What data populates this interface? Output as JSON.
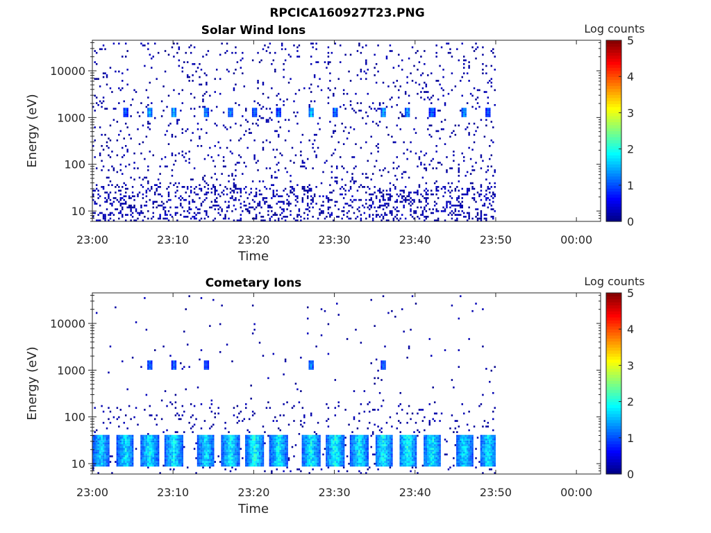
{
  "figure_title": "RPCICA160927T23.PNG",
  "colormap": "jet",
  "chart_data": [
    {
      "type": "heatmap",
      "title": "Solar Wind Ions",
      "xlabel": "Time",
      "ylabel": "Energy (eV)",
      "yscale": "log",
      "xlim": [
        "23:00",
        "00:03"
      ],
      "ylim": [
        6,
        45000
      ],
      "x_ticks": [
        "23:00",
        "23:10",
        "23:20",
        "23:30",
        "23:40",
        "23:50",
        "00:00"
      ],
      "y_ticks": [
        "10",
        "100",
        "1000",
        "10000"
      ],
      "data_span": [
        "23:00",
        "23:50"
      ],
      "colorbar": {
        "label": "Log counts",
        "range": [
          0,
          5
        ],
        "ticks": [
          "0",
          "1",
          "2",
          "3",
          "4",
          "5"
        ]
      },
      "pattern": "sparse single counts across all energies; recurring ~1.2 keV peaks every ~3 min",
      "peaks": [
        {
          "time": "23:04",
          "energy_eV": 1200,
          "log_counts": 1.2
        },
        {
          "time": "23:07",
          "energy_eV": 1200,
          "log_counts": 1.7
        },
        {
          "time": "23:10",
          "energy_eV": 1200,
          "log_counts": 1.6
        },
        {
          "time": "23:14",
          "energy_eV": 1200,
          "log_counts": 1.5
        },
        {
          "time": "23:17",
          "energy_eV": 1200,
          "log_counts": 1.4
        },
        {
          "time": "23:20",
          "energy_eV": 1200,
          "log_counts": 1.3
        },
        {
          "time": "23:23",
          "energy_eV": 1200,
          "log_counts": 1.2
        },
        {
          "time": "23:27",
          "energy_eV": 1200,
          "log_counts": 1.9
        },
        {
          "time": "23:30",
          "energy_eV": 1200,
          "log_counts": 1.4
        },
        {
          "time": "23:36",
          "energy_eV": 1200,
          "log_counts": 1.7
        },
        {
          "time": "23:39",
          "energy_eV": 1200,
          "log_counts": 1.6
        },
        {
          "time": "23:42",
          "energy_eV": 1200,
          "log_counts": 1.3
        },
        {
          "time": "23:46",
          "energy_eV": 1200,
          "log_counts": 1.6
        },
        {
          "time": "23:49",
          "energy_eV": 1200,
          "log_counts": 1.2
        }
      ]
    },
    {
      "type": "heatmap",
      "title": "Cometary Ions",
      "xlabel": "Time",
      "ylabel": "Energy (eV)",
      "yscale": "log",
      "xlim": [
        "23:00",
        "00:03"
      ],
      "ylim": [
        6,
        45000
      ],
      "x_ticks": [
        "23:00",
        "23:10",
        "23:20",
        "23:30",
        "23:40",
        "23:50",
        "00:00"
      ],
      "y_ticks": [
        "10",
        "100",
        "1000",
        "10000"
      ],
      "data_span": [
        "23:00",
        "23:50"
      ],
      "colorbar": {
        "label": "Log counts",
        "range": [
          0,
          5
        ],
        "ticks": [
          "0",
          "1",
          "2",
          "3",
          "4",
          "5"
        ]
      },
      "pattern": "strong low-energy (10-30 eV) bursts every ~3.2 min; sparse counts at higher energies",
      "peaks": [
        {
          "time": "23:01",
          "energy_eV": 18,
          "log_counts": 1.8
        },
        {
          "time": "23:04",
          "energy_eV": 18,
          "log_counts": 1.9
        },
        {
          "time": "23:07",
          "energy_eV": 18,
          "log_counts": 2.0
        },
        {
          "time": "23:10",
          "energy_eV": 18,
          "log_counts": 2.0
        },
        {
          "time": "23:14",
          "energy_eV": 18,
          "log_counts": 1.9
        },
        {
          "time": "23:17",
          "energy_eV": 18,
          "log_counts": 2.0
        },
        {
          "time": "23:20",
          "energy_eV": 18,
          "log_counts": 2.1
        },
        {
          "time": "23:23",
          "energy_eV": 18,
          "log_counts": 2.0
        },
        {
          "time": "23:27",
          "energy_eV": 18,
          "log_counts": 2.0
        },
        {
          "time": "23:30",
          "energy_eV": 18,
          "log_counts": 2.1
        },
        {
          "time": "23:33",
          "energy_eV": 18,
          "log_counts": 2.0
        },
        {
          "time": "23:36",
          "energy_eV": 18,
          "log_counts": 2.0
        },
        {
          "time": "23:39",
          "energy_eV": 18,
          "log_counts": 2.1
        },
        {
          "time": "23:42",
          "energy_eV": 18,
          "log_counts": 2.0
        },
        {
          "time": "23:46",
          "energy_eV": 18,
          "log_counts": 1.9
        },
        {
          "time": "23:49",
          "energy_eV": 18,
          "log_counts": 1.9
        },
        {
          "time": "23:07",
          "energy_eV": 1200,
          "log_counts": 1.3
        },
        {
          "time": "23:10",
          "energy_eV": 1200,
          "log_counts": 1.2
        },
        {
          "time": "23:14",
          "energy_eV": 1200,
          "log_counts": 1.2
        },
        {
          "time": "23:27",
          "energy_eV": 1200,
          "log_counts": 1.5
        },
        {
          "time": "23:36",
          "energy_eV": 1200,
          "log_counts": 1.2
        }
      ]
    }
  ]
}
